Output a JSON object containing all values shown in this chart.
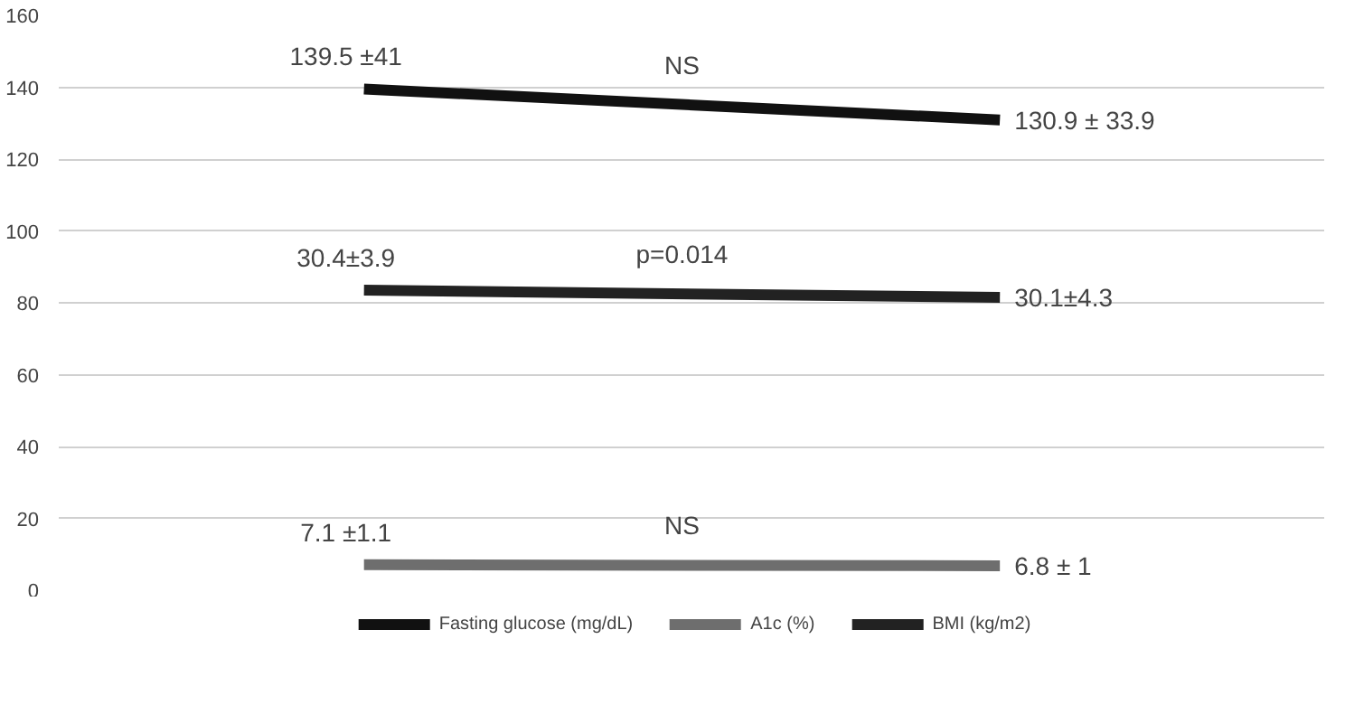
{
  "chart_data": {
    "type": "line",
    "categories": [
      null,
      null
    ],
    "series": [
      {
        "name": "Fasting glucose (mg/dL)",
        "color": "#111111",
        "values": [
          139.5,
          130.9
        ],
        "value_labels": [
          "139.5 ±41",
          "130.9 ± 33.9"
        ]
      },
      {
        "name": "A1c (%)",
        "color": "#6e6e6e",
        "values": [
          7.1,
          6.8
        ],
        "value_labels": [
          "7.1 ±1.1",
          "6.8 ± 1"
        ]
      },
      {
        "name": "BMI (kg/m2)",
        "color": "#222222",
        "values": [
          83.5,
          81.5
        ]
      }
    ],
    "annotations": [
      "NS",
      "p=0.014",
      "NS",
      "30.4±3.9",
      "30.1±4.3"
    ],
    "ylim": [
      0,
      160
    ],
    "yticks": [
      0,
      20,
      40,
      60,
      80,
      100,
      120,
      140,
      160
    ],
    "grid": "y",
    "legend": "bottom",
    "marker": "none",
    "line_style": "solid"
  }
}
